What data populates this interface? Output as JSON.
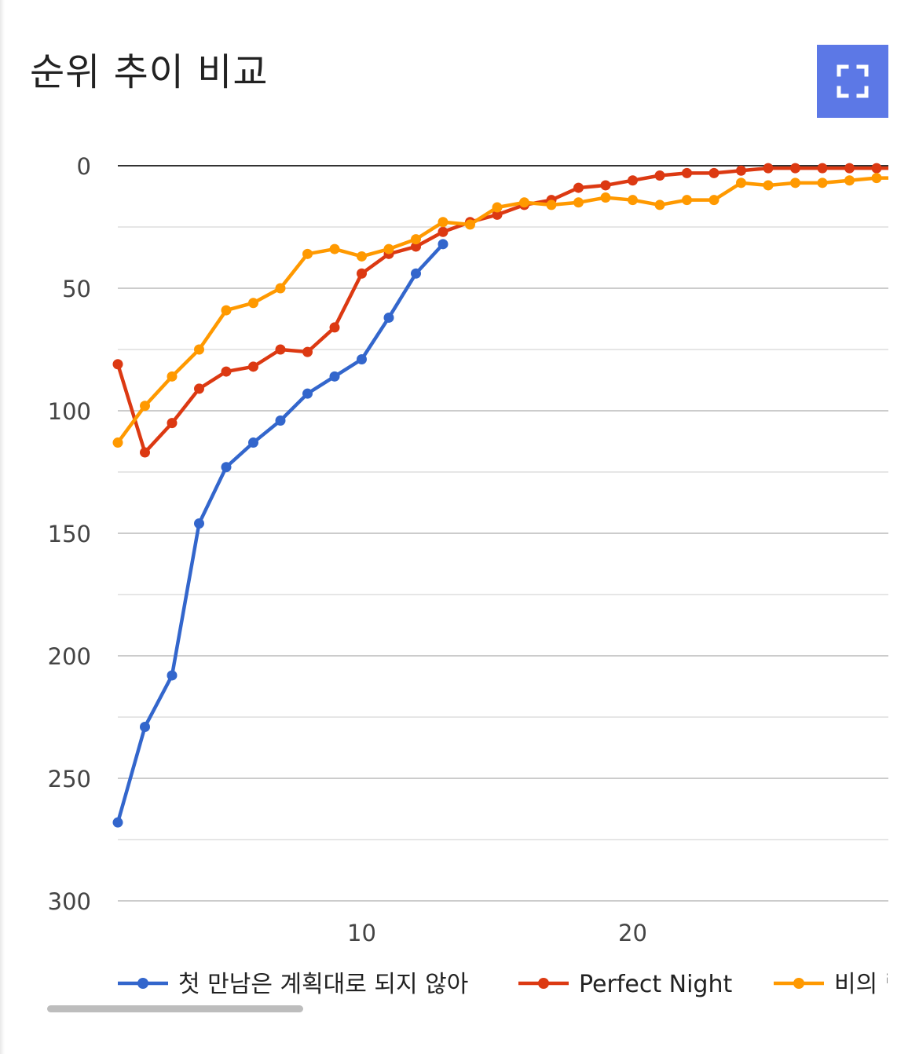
{
  "header": {
    "title": "순위 추이 비교",
    "fullscreen_icon": "fullscreen-icon"
  },
  "chart_data": {
    "type": "line",
    "title": "순위 추이 비교",
    "xlabel": "",
    "ylabel": "",
    "y_inverted": true,
    "ylim": [
      0,
      300
    ],
    "xlim": [
      1,
      29.5
    ],
    "x_ticks": [
      "10",
      "20"
    ],
    "y_ticks": [
      "0",
      "50",
      "100",
      "150",
      "200",
      "250",
      "300"
    ],
    "grid": true,
    "legend": "bottom",
    "series": [
      {
        "name": "첫 만남은 계획대로 되지 않아",
        "color": "#3366cc",
        "x": [
          1,
          2,
          3,
          4,
          5,
          6,
          7,
          8,
          9,
          10,
          11,
          12,
          13
        ],
        "values": [
          268,
          229,
          208,
          146,
          123,
          113,
          104,
          93,
          86,
          79,
          62,
          44,
          32
        ]
      },
      {
        "name": "Perfect Night",
        "color": "#dc3912",
        "x": [
          1,
          2,
          3,
          4,
          5,
          6,
          7,
          8,
          9,
          10,
          11,
          12,
          13,
          14,
          15,
          16,
          17,
          18,
          19,
          20,
          21,
          22,
          23,
          24,
          25,
          26,
          27,
          28,
          29,
          30
        ],
        "values": [
          81,
          117,
          105,
          91,
          84,
          82,
          75,
          76,
          66,
          44,
          36,
          33,
          27,
          23,
          20,
          16,
          14,
          9,
          8,
          6,
          4,
          3,
          3,
          2,
          1,
          1,
          1,
          1,
          1,
          1
        ]
      },
      {
        "name": "비의 랩소디",
        "color": "#ff9900",
        "x": [
          1,
          2,
          3,
          4,
          5,
          6,
          7,
          8,
          9,
          10,
          11,
          12,
          13,
          14,
          15,
          16,
          17,
          18,
          19,
          20,
          21,
          22,
          23,
          24,
          25,
          26,
          27,
          28,
          29,
          30
        ],
        "values": [
          113,
          98,
          86,
          75,
          59,
          56,
          50,
          36,
          34,
          37,
          34,
          30,
          23,
          24,
          17,
          15,
          16,
          15,
          13,
          14,
          16,
          14,
          14,
          7,
          8,
          7,
          7,
          6,
          5,
          5
        ]
      }
    ]
  }
}
